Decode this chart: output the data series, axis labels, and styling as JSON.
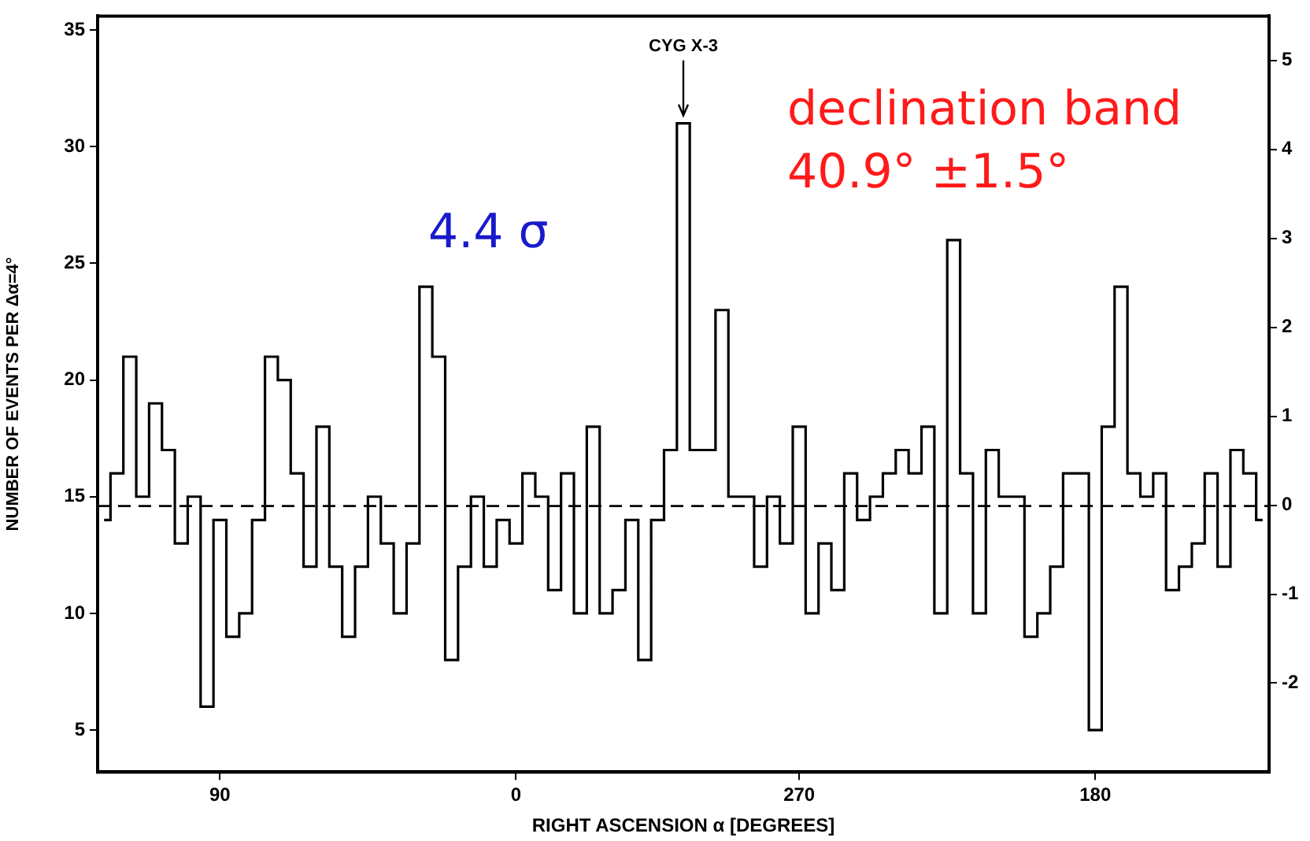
{
  "chart_data": {
    "type": "step",
    "xlabel": "RIGHT ASCENSION α [DEGREES]",
    "ylabel": "NUMBER OF EVENTS PER Δα=4°",
    "categories": [
      null,
      null,
      null,
      null,
      null,
      null,
      null,
      null,
      null,
      "90",
      null,
      null,
      null,
      null,
      null,
      null,
      null,
      null,
      null,
      null,
      null,
      null,
      null,
      null,
      null,
      null,
      null,
      null,
      null,
      null,
      null,
      null,
      "0",
      null,
      null,
      null,
      null,
      null,
      null,
      null,
      null,
      null,
      null,
      null,
      null,
      null,
      null,
      null,
      null,
      null,
      null,
      null,
      null,
      null,
      "270",
      null,
      null,
      null,
      null,
      null,
      null,
      null,
      null,
      null,
      null,
      null,
      null,
      null,
      null,
      null,
      null,
      null,
      null,
      null,
      null,
      null,
      null,
      "180",
      null,
      null,
      null,
      null,
      null,
      null,
      null,
      null,
      null,
      null,
      null,
      null,
      null
    ],
    "values": [
      14,
      16,
      21,
      15,
      19,
      17,
      13,
      15,
      6,
      14,
      9,
      10,
      14,
      21,
      20,
      16,
      12,
      18,
      12,
      9,
      12,
      15,
      13,
      10,
      13,
      24,
      21,
      8,
      12,
      15,
      12,
      14,
      13,
      16,
      15,
      11,
      16,
      10,
      18,
      10,
      11,
      14,
      8,
      14,
      17,
      31,
      17,
      17,
      23,
      15,
      15,
      12,
      15,
      13,
      18,
      10,
      13,
      11,
      16,
      14,
      15,
      16,
      17,
      16,
      18,
      10,
      26,
      16,
      10,
      17,
      15,
      15,
      9,
      10,
      12,
      16,
      16,
      5,
      18,
      24,
      16,
      15,
      16,
      11,
      12,
      13,
      16,
      12,
      17,
      16,
      14
    ],
    "color": "#000000",
    "ylim": [
      3.2,
      35.6
    ],
    "yticks": [
      5,
      10,
      15,
      20,
      25,
      30,
      35
    ],
    "y2lim": [
      -3,
      5.5
    ],
    "y2ticks": [
      -2,
      -1,
      0,
      1,
      2,
      3,
      4,
      5
    ],
    "ref_lines": [
      {
        "axis": "y",
        "value": 14.6,
        "line_style": "dashed",
        "color": "#000000"
      }
    ],
    "annotations": [
      {
        "text": "CYG X-3",
        "y": 31
      },
      "4.4 σ",
      "declination band 40.9° ±1.5°"
    ],
    "grid": false,
    "legend": false
  }
}
